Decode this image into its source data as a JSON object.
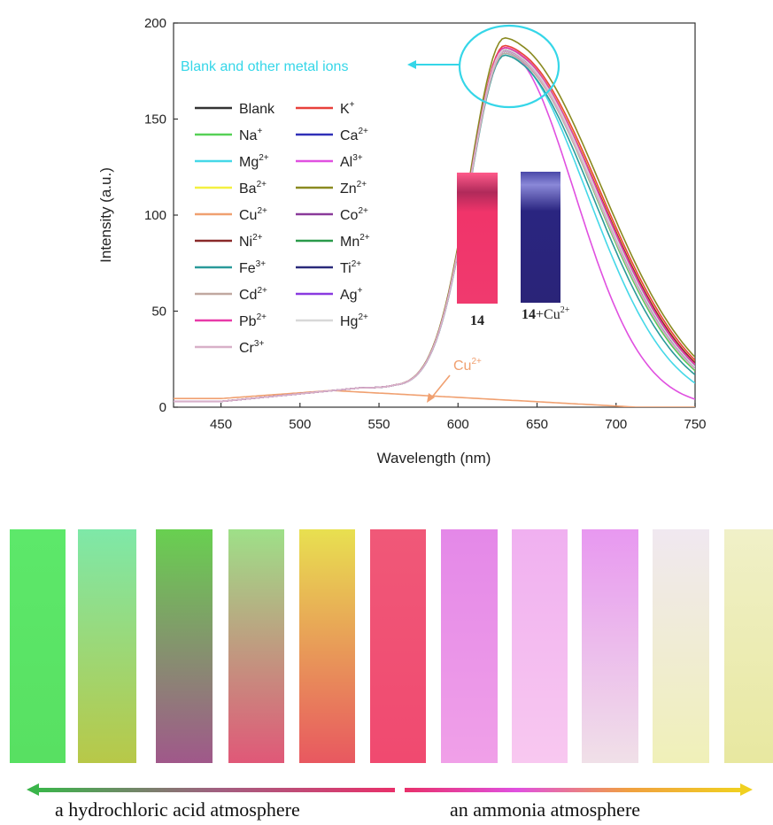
{
  "chart_data": {
    "type": "line",
    "xlabel": "Wavelength (nm)",
    "ylabel": "Intensity (a.u.)",
    "xlim": [
      420,
      750
    ],
    "ylim": [
      0,
      200
    ],
    "x_ticks": [
      450,
      500,
      550,
      600,
      650,
      700,
      750
    ],
    "y_ticks": [
      0,
      50,
      100,
      150,
      200
    ],
    "grid": false,
    "legend_position": "left",
    "annotations": {
      "circle_label": "Blank and other metal ions",
      "cu_label_base": "Cu",
      "cu_label_sup": "2+"
    },
    "inset": {
      "label1": "14",
      "label2_base": "14",
      "label2_rest": "+Cu",
      "label2_sup": "2+",
      "colors": [
        "#f0346a",
        "#2a2580"
      ]
    },
    "series": [
      {
        "base": "Blank",
        "sup": "",
        "color": "#333333",
        "peak": 185,
        "tail750": 27
      },
      {
        "base": "K",
        "sup": "+",
        "color": "#e8403a",
        "peak": 187,
        "tail750": 29
      },
      {
        "base": "Na",
        "sup": "+",
        "color": "#56d156",
        "peak": 184,
        "tail750": 24
      },
      {
        "base": "Ca",
        "sup": "2+",
        "color": "#3030b8",
        "peak": 184,
        "tail750": 25
      },
      {
        "base": "Mg",
        "sup": "2+",
        "color": "#45d8e8",
        "peak": 183,
        "tail750": 17
      },
      {
        "base": "Al",
        "sup": "3+",
        "color": "#e050e0",
        "peak": 185,
        "tail750": 4
      },
      {
        "base": "Ba",
        "sup": "2+",
        "color": "#f4f040",
        "peak": 186,
        "tail750": 28
      },
      {
        "base": "Zn",
        "sup": "2+",
        "color": "#8a8a20",
        "peak": 191,
        "tail750": 30
      },
      {
        "base": "Cu",
        "sup": "2+",
        "color": "#f0a070",
        "peak": null,
        "tail750": 0
      },
      {
        "base": "Co",
        "sup": "2+",
        "color": "#8a3a9a",
        "peak": 186,
        "tail750": 27
      },
      {
        "base": "Ni",
        "sup": "2+",
        "color": "#8a2a2a",
        "peak": 185,
        "tail750": 28
      },
      {
        "base": "Mn",
        "sup": "2+",
        "color": "#2a9a4a",
        "peak": 184,
        "tail750": 26
      },
      {
        "base": "Fe",
        "sup": "3+",
        "color": "#2a9a9a",
        "peak": 182,
        "tail750": 22
      },
      {
        "base": "Ti",
        "sup": "2+",
        "color": "#2a2a7a",
        "peak": 184,
        "tail750": 26
      },
      {
        "base": "Cd",
        "sup": "2+",
        "color": "#c0a8a0",
        "peak": 183,
        "tail750": 25
      },
      {
        "base": "Ag",
        "sup": "+",
        "color": "#8a3ae0",
        "peak": 185,
        "tail750": 26
      },
      {
        "base": "Pb",
        "sup": "2+",
        "color": "#e83aa8",
        "peak": 186,
        "tail750": 27
      },
      {
        "base": "Hg",
        "sup": "2+",
        "color": "#d8d8d8",
        "peak": 185,
        "tail750": 26
      },
      {
        "base": "Cr",
        "sup": "3+",
        "color": "#d8b0c8",
        "peak": 184,
        "tail750": 25
      }
    ]
  },
  "strips": [
    {
      "top": "#5de86a",
      "bottom": "#58e062"
    },
    {
      "top": "#7ee8a8",
      "bottom": "#b8c848"
    },
    {
      "top": "#68d050",
      "bottom": "#a0588a"
    },
    {
      "top": "#9ee088",
      "bottom": "#e05878"
    },
    {
      "top": "#e8e050",
      "bottom": "#e85860"
    },
    {
      "top": "#f05878",
      "bottom": "#f04a70"
    },
    {
      "top": "#e488e8",
      "bottom": "#f0a0e8"
    },
    {
      "top": "#f0b0f0",
      "bottom": "#f8c8f0"
    },
    {
      "top": "#e898f0",
      "bottom": "#f0e0e8"
    },
    {
      "top": "#f0e8f0",
      "bottom": "#f0f0b8"
    },
    {
      "top": "#f0f0c8",
      "bottom": "#e8e8a0"
    }
  ],
  "bottom_labels": {
    "left": "a hydrochloric acid atmosphere",
    "right": "an ammonia atmosphere"
  }
}
